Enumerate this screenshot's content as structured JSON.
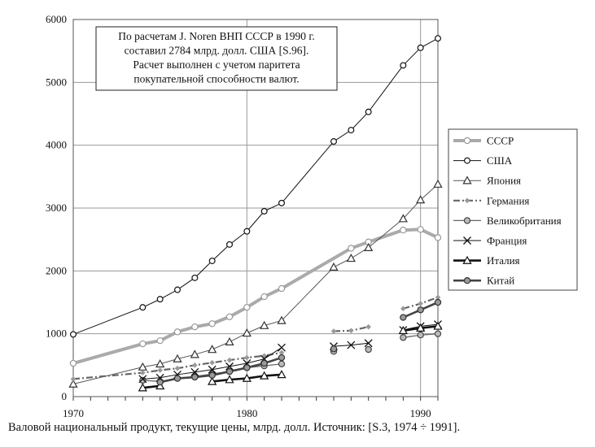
{
  "chart_data": {
    "type": "line",
    "xlim": [
      1970,
      1991
    ],
    "ylim": [
      0,
      6000
    ],
    "x_ticks": [
      1970,
      1980,
      1990
    ],
    "y_ticks": [
      0,
      1000,
      2000,
      3000,
      4000,
      5000,
      6000
    ],
    "grid": true,
    "legend_position": "right",
    "annotation": [
      "По расчетам J. Noren ВНП СССР в 1990 г.",
      "составил 2784 млрд. долл. США [S.96].",
      "Расчет выполнен с учетом паритета",
      "покупательной способности валют."
    ],
    "caption": "Валовой национальный продукт, текущие цены, млрд. долл. Источник: [S.3, 1974 ÷ 1991].",
    "series": [
      {
        "name": "СССР",
        "color": "#aaaaaa",
        "style": "thick-gray-open-circle",
        "segments": [
          [
            [
              1970,
              530
            ],
            [
              1974,
              840
            ],
            [
              1975,
              890
            ],
            [
              1976,
              1030
            ],
            [
              1977,
              1110
            ],
            [
              1978,
              1160
            ],
            [
              1979,
              1270
            ],
            [
              1980,
              1420
            ],
            [
              1981,
              1590
            ],
            [
              1982,
              1720
            ],
            [
              1986,
              2360
            ],
            [
              1987,
              2460
            ],
            [
              1989,
              2650
            ],
            [
              1990,
              2660
            ],
            [
              1991,
              2530
            ]
          ]
        ]
      },
      {
        "name": "США",
        "color": "#111111",
        "style": "thin-black-open-circle",
        "segments": [
          [
            [
              1970,
              990
            ],
            [
              1974,
              1420
            ],
            [
              1975,
              1550
            ],
            [
              1976,
              1700
            ],
            [
              1977,
              1890
            ],
            [
              1978,
              2160
            ],
            [
              1979,
              2420
            ],
            [
              1980,
              2630
            ],
            [
              1981,
              2950
            ],
            [
              1982,
              3080
            ],
            [
              1985,
              4060
            ],
            [
              1986,
              4240
            ],
            [
              1987,
              4530
            ],
            [
              1989,
              5270
            ],
            [
              1990,
              5550
            ],
            [
              1991,
              5700
            ]
          ]
        ]
      },
      {
        "name": "Япония",
        "color": "#555555",
        "style": "thin-triangle",
        "segments": [
          [
            [
              1970,
              200
            ],
            [
              1974,
              470
            ],
            [
              1975,
              520
            ],
            [
              1976,
              600
            ],
            [
              1977,
              670
            ],
            [
              1978,
              750
            ],
            [
              1979,
              870
            ],
            [
              1980,
              1010
            ],
            [
              1981,
              1130
            ],
            [
              1982,
              1210
            ],
            [
              1985,
              2060
            ],
            [
              1986,
              2200
            ],
            [
              1987,
              2370
            ],
            [
              1989,
              2830
            ],
            [
              1990,
              3130
            ],
            [
              1991,
              3380
            ]
          ]
        ]
      },
      {
        "name": "Германия",
        "color": "#666666",
        "style": "dash-dot-diamond",
        "segments": [
          [
            [
              1970,
              280
            ],
            [
              1974,
              380
            ],
            [
              1975,
              420
            ],
            [
              1976,
              450
            ],
            [
              1977,
              500
            ],
            [
              1978,
              540
            ],
            [
              1979,
              580
            ],
            [
              1980,
              620
            ],
            [
              1981,
              650
            ],
            [
              1982,
              700
            ]
          ],
          [
            [
              1985,
              1040
            ],
            [
              1986,
              1050
            ],
            [
              1987,
              1110
            ]
          ],
          [
            [
              1989,
              1400
            ],
            [
              1990,
              1480
            ],
            [
              1991,
              1580
            ]
          ]
        ]
      },
      {
        "name": "Великобритания",
        "color": "#666666",
        "style": "gray-filled-circle",
        "segments": [
          [
            [
              1974,
              260
            ],
            [
              1975,
              240
            ],
            [
              1976,
              290
            ],
            [
              1977,
              320
            ],
            [
              1978,
              360
            ],
            [
              1979,
              400
            ],
            [
              1980,
              460
            ],
            [
              1981,
              490
            ],
            [
              1982,
              520
            ]
          ],
          [
            [
              1985,
              720
            ]
          ],
          [
            [
              1987,
              750
            ]
          ],
          [
            [
              1989,
              940
            ],
            [
              1990,
              980
            ],
            [
              1991,
              1000
            ]
          ]
        ]
      },
      {
        "name": "Франция",
        "color": "#111111",
        "style": "x-marker",
        "segments": [
          [
            [
              1974,
              280
            ],
            [
              1975,
              300
            ],
            [
              1976,
              350
            ],
            [
              1977,
              390
            ],
            [
              1978,
              430
            ],
            [
              1979,
              480
            ],
            [
              1980,
              530
            ],
            [
              1981,
              600
            ],
            [
              1982,
              780
            ]
          ],
          [
            [
              1985,
              800
            ],
            [
              1986,
              820
            ],
            [
              1987,
              850
            ]
          ],
          [
            [
              1989,
              1060
            ],
            [
              1990,
              1120
            ],
            [
              1991,
              1150
            ]
          ]
        ]
      },
      {
        "name": "Италия",
        "color": "#111111",
        "style": "thick-black-triangle",
        "segments": [
          [
            [
              1974,
              140
            ],
            [
              1975,
              170
            ]
          ],
          [
            [
              1978,
              240
            ],
            [
              1979,
              270
            ],
            [
              1980,
              290
            ],
            [
              1981,
              330
            ],
            [
              1982,
              350
            ]
          ],
          [
            [
              1989,
              1050
            ],
            [
              1990,
              1090
            ],
            [
              1991,
              1120
            ]
          ]
        ]
      },
      {
        "name": "Китай",
        "color": "#444444",
        "style": "thick-dark-circle",
        "segments": [
          [
            [
              1975,
              230
            ],
            [
              1976,
              290
            ],
            [
              1977,
              310
            ],
            [
              1978,
              340
            ],
            [
              1979,
              400
            ],
            [
              1980,
              460
            ],
            [
              1981,
              530
            ],
            [
              1982,
              620
            ]
          ],
          [
            [
              1985,
              760
            ]
          ],
          [
            [
              1989,
              1260
            ],
            [
              1990,
              1380
            ],
            [
              1991,
              1500
            ]
          ]
        ]
      }
    ]
  }
}
